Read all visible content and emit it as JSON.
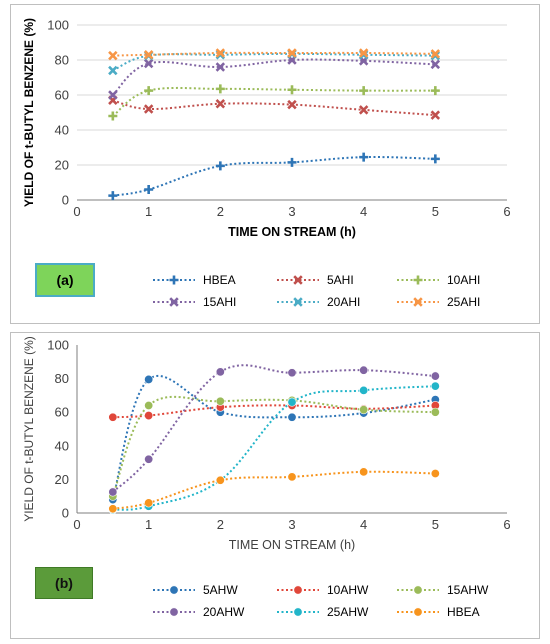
{
  "chart_data": [
    {
      "type": "line",
      "panel_label": "(a)",
      "xlabel": "TIME ON STREAM (h)",
      "ylabel": "YIELD OF t-BUTYL BENZENE (%)",
      "xlim": [
        0,
        6
      ],
      "ylim": [
        0,
        100
      ],
      "x_ticks": [
        "0",
        "1",
        "2",
        "3",
        "4",
        "5",
        "6"
      ],
      "y_ticks": [
        "0",
        "20",
        "40",
        "60",
        "80",
        "100"
      ],
      "x": [
        0.5,
        1,
        2,
        3,
        4,
        5
      ],
      "grid": true,
      "legend_position": "bottom",
      "series": [
        {
          "name": "HBEA",
          "values": [
            2.5,
            6,
            19.5,
            21.5,
            24.5,
            23.5
          ],
          "color": "#2e75b6",
          "marker": "plus"
        },
        {
          "name": "5AHI",
          "values": [
            57,
            52,
            55,
            54.5,
            51.5,
            48.5
          ],
          "color": "#c0504d",
          "marker": "x"
        },
        {
          "name": "10AHI",
          "values": [
            48,
            62.5,
            63.5,
            63,
            62.5,
            62.5
          ],
          "color": "#9bbb59",
          "marker": "plus"
        },
        {
          "name": "15AHI",
          "values": [
            60,
            78,
            76,
            80,
            79.5,
            77.5
          ],
          "color": "#8064a2",
          "marker": "x"
        },
        {
          "name": "20AHI",
          "values": [
            74,
            82.5,
            83,
            83.5,
            83,
            82.5
          ],
          "color": "#4bacc6",
          "marker": "x"
        },
        {
          "name": "25AHI",
          "values": [
            82.5,
            83,
            84,
            84,
            84,
            83.5
          ],
          "color": "#f79646",
          "marker": "x"
        }
      ]
    },
    {
      "type": "line",
      "panel_label": "(b)",
      "xlabel": "TIME ON STREAM (h)",
      "ylabel": "YIELD OF t-BUTYL BENZENE (%)",
      "xlim": [
        0,
        6
      ],
      "ylim": [
        0,
        100
      ],
      "x_ticks": [
        "0",
        "1",
        "2",
        "3",
        "4",
        "5",
        "6"
      ],
      "y_ticks": [
        "0",
        "20",
        "40",
        "60",
        "80",
        "100"
      ],
      "x": [
        0.5,
        1,
        2,
        3,
        4,
        5
      ],
      "grid": false,
      "legend_position": "bottom",
      "series": [
        {
          "name": "5AHW",
          "values": [
            8,
            79.5,
            60,
            57,
            59.5,
            67.5
          ],
          "color": "#2e75b6",
          "marker": "circle"
        },
        {
          "name": "10AHW",
          "values": [
            57,
            58,
            63,
            64,
            62,
            64
          ],
          "color": "#e0473a",
          "marker": "circle"
        },
        {
          "name": "15AHW",
          "values": [
            10,
            64,
            66.5,
            67,
            61.5,
            60
          ],
          "color": "#9bbb59",
          "marker": "circle"
        },
        {
          "name": "20AHW",
          "values": [
            12.5,
            32,
            84,
            83.5,
            85,
            81.5
          ],
          "color": "#8064a2",
          "marker": "circle"
        },
        {
          "name": "25AHW",
          "values": [
            2,
            4,
            19.5,
            66,
            73,
            75.5
          ],
          "color": "#22b5c9",
          "marker": "circle"
        },
        {
          "name": "HBEA",
          "values": [
            2.5,
            6,
            19.5,
            21.5,
            24.5,
            23.5
          ],
          "color": "#f7941d",
          "marker": "circle"
        }
      ]
    }
  ]
}
